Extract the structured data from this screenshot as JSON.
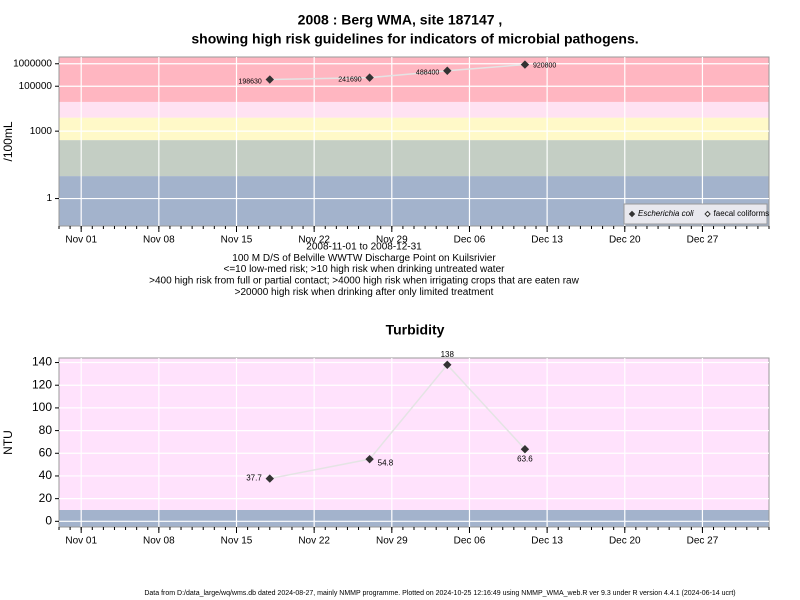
{
  "chart_data": [
    {
      "type": "line",
      "title": "2008 : Berg WMA, site 187147 ,",
      "subtitle": "showing high risk guidelines for indicators of microbial pathogens.",
      "y_label": "/100mL",
      "log_y": true,
      "grid": true,
      "legend": "bottom-right",
      "x": [
        "2008-11-18",
        "2008-11-27",
        "2008-12-04",
        "2008-12-11"
      ],
      "series": [
        {
          "name": "Escherichia coli",
          "color": "#333333",
          "marker": "filled",
          "values": [
            198630,
            241690,
            488400,
            920800
          ]
        },
        {
          "name": "faecal coliforms",
          "color": "#333333",
          "marker": "open",
          "values": [
            null,
            null,
            null,
            null
          ]
        }
      ],
      "line_color": "#e4e4e4",
      "xlim": [
        "2008-10-30",
        "2009-01-02"
      ],
      "xticks": [
        {
          "value": "2008-11-01",
          "label": "Nov 01"
        },
        {
          "value": "2008-11-08",
          "label": "Nov 08"
        },
        {
          "value": "2008-11-15",
          "label": "Nov 15"
        },
        {
          "value": "2008-11-22",
          "label": "Nov 22"
        },
        {
          "value": "2008-11-29",
          "label": "Nov 29"
        },
        {
          "value": "2008-12-06",
          "label": "Dec 06"
        },
        {
          "value": "2008-12-13",
          "label": "Dec 13"
        },
        {
          "value": "2008-12-20",
          "label": "Dec 20"
        },
        {
          "value": "2008-12-27",
          "label": "Dec 27"
        }
      ],
      "ylim": [
        0.06,
        2000000
      ],
      "yticks": [
        1,
        1000,
        100000,
        1000000
      ],
      "bands": [
        {
          "from": 0.06,
          "to": 10,
          "color": "#a3b3cc"
        },
        {
          "from": 10,
          "to": 400,
          "color": "#c4cec4"
        },
        {
          "from": 400,
          "to": 4000,
          "color": "#fff9c8"
        },
        {
          "from": 4000,
          "to": 20000,
          "color": "#ffe2f2"
        },
        {
          "from": 20000,
          "to": 2000000,
          "color": "#ffb6c1"
        }
      ],
      "notes": [
        "2008-11-01 to 2008-12-31",
        "100 M D/S of Belville WWTW Discharge Point on Kuilsrivier",
        "<=10 low-med risk; >10 high risk when drinking untreated water",
        ">400 high risk from full or partial contact; >4000 high risk when irrigating crops that are eaten raw",
        ">20000 high risk when drinking after only limited treatment"
      ]
    },
    {
      "type": "line",
      "title": "Turbidity",
      "y_label": "NTU",
      "log_y": false,
      "grid": true,
      "x": [
        "2008-11-18",
        "2008-11-27",
        "2008-12-04",
        "2008-12-11"
      ],
      "series": [
        {
          "name": "Turbidity",
          "color": "#333333",
          "marker": "filled",
          "values": [
            37.7,
            54.8,
            138,
            63.6
          ]
        }
      ],
      "line_color": "#e4e4e4",
      "xlim": [
        "2008-10-30",
        "2009-01-02"
      ],
      "xticks": [
        {
          "value": "2008-11-01",
          "label": "Nov 01"
        },
        {
          "value": "2008-11-08",
          "label": "Nov 08"
        },
        {
          "value": "2008-11-15",
          "label": "Nov 15"
        },
        {
          "value": "2008-11-22",
          "label": "Nov 22"
        },
        {
          "value": "2008-11-29",
          "label": "Nov 29"
        },
        {
          "value": "2008-12-06",
          "label": "Dec 06"
        },
        {
          "value": "2008-12-13",
          "label": "Dec 13"
        },
        {
          "value": "2008-12-20",
          "label": "Dec 20"
        },
        {
          "value": "2008-12-27",
          "label": "Dec 27"
        }
      ],
      "ylim": [
        -5,
        144
      ],
      "yticks": [
        0,
        20,
        40,
        60,
        80,
        100,
        120,
        140
      ],
      "bands": [
        {
          "from": -5,
          "to": 10,
          "color": "#a3b3cc"
        },
        {
          "from": 10,
          "to": 144,
          "color": "#ffe2fc"
        }
      ]
    }
  ],
  "footer": "Data from D:/data_large/wq/wms.db dated 2024-08-27, mainly NMMP programme. Plotted on 2024-10-25 12:16:49 using NMMP_WMA_web.R ver 9.3 under R version 4.4.1 (2024-06-14 ucrt)"
}
